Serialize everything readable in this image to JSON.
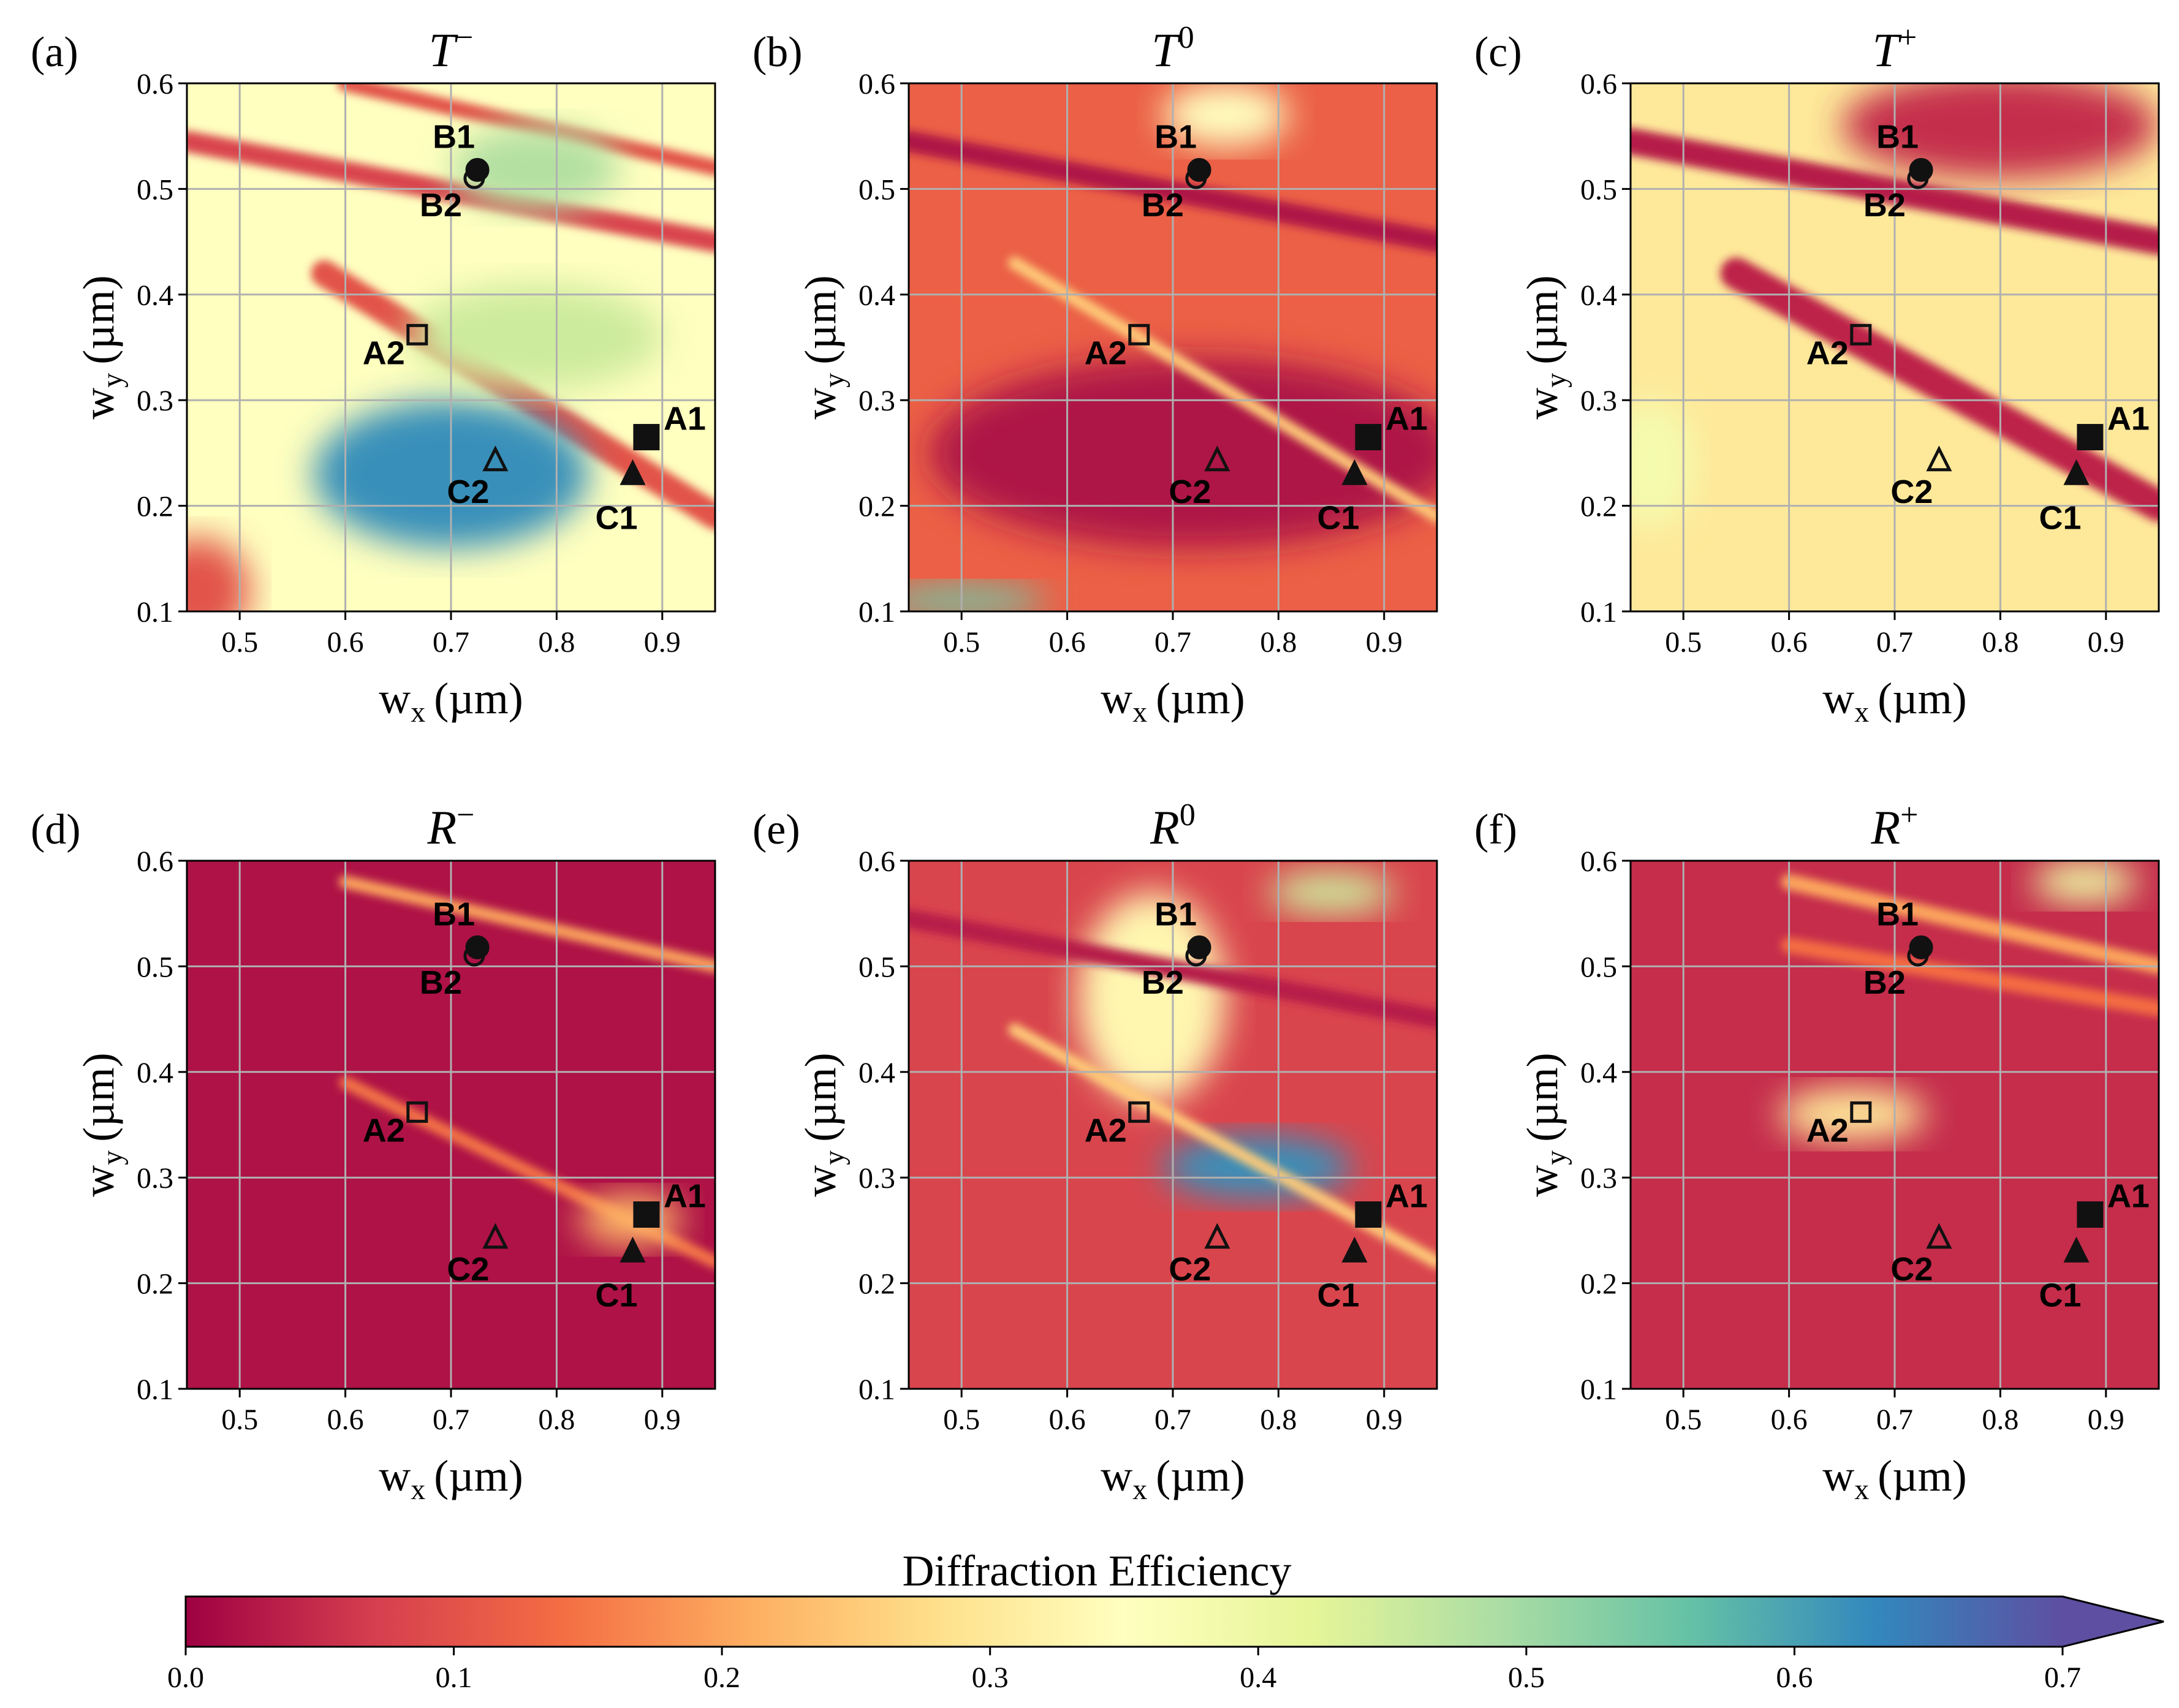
{
  "colors": {
    "colormap": [
      "#9e0142",
      "#d53e4f",
      "#f46d43",
      "#fdae61",
      "#fee08b",
      "#ffffbf",
      "#e6f598",
      "#abdda4",
      "#66c2a5",
      "#3288bd",
      "#5e4fa2"
    ],
    "grid": "#b0b0b0",
    "marker": "#111111"
  },
  "chart_data": [
    {
      "type": "heatmap",
      "panel": "(a)",
      "title_base": "T",
      "title_sup": "−",
      "xlabel_main": "w",
      "xlabel_sub": "x",
      "xlabel_unit": "(µm)",
      "ylabel_main": "w",
      "ylabel_sub": "y",
      "ylabel_unit": "(µm)",
      "xlim": [
        0.45,
        0.95
      ],
      "ylim": [
        0.1,
        0.6
      ],
      "xticks": [
        "0.5",
        "0.6",
        "0.7",
        "0.8",
        "0.9"
      ],
      "yticks": [
        "0.1",
        "0.2",
        "0.3",
        "0.4",
        "0.5",
        "0.6"
      ],
      "grid": true,
      "base_level": 0.35,
      "features": [
        {
          "kind": "band",
          "x0": 0.45,
          "y0": 0.545,
          "x1": 0.95,
          "y1": 0.45,
          "value": 0.08,
          "width": 0.02
        },
        {
          "kind": "band",
          "x0": 0.6,
          "y0": 0.6,
          "x1": 0.95,
          "y1": 0.52,
          "value": 0.1,
          "width": 0.015
        },
        {
          "kind": "band",
          "x0": 0.58,
          "y0": 0.42,
          "x1": 0.95,
          "y1": 0.19,
          "value": 0.1,
          "width": 0.025
        },
        {
          "kind": "blob",
          "cx": 0.7,
          "cy": 0.23,
          "rx": 0.13,
          "ry": 0.07,
          "value": 0.62
        },
        {
          "kind": "blob",
          "cx": 0.78,
          "cy": 0.52,
          "rx": 0.08,
          "ry": 0.04,
          "value": 0.48
        },
        {
          "kind": "blob",
          "cx": 0.78,
          "cy": 0.36,
          "rx": 0.12,
          "ry": 0.05,
          "value": 0.45
        },
        {
          "kind": "blob",
          "cx": 0.46,
          "cy": 0.12,
          "rx": 0.05,
          "ry": 0.05,
          "value": 0.1
        }
      ],
      "markers": [
        {
          "label": "A1",
          "x": 0.885,
          "y": 0.265,
          "shape": "square",
          "filled": true
        },
        {
          "label": "A2",
          "x": 0.668,
          "y": 0.362,
          "shape": "square",
          "filled": false
        },
        {
          "label": "B1",
          "x": 0.725,
          "y": 0.518,
          "shape": "circle",
          "filled": true
        },
        {
          "label": "B2",
          "x": 0.722,
          "y": 0.51,
          "shape": "circle",
          "filled": false
        },
        {
          "label": "C1",
          "x": 0.872,
          "y": 0.229,
          "shape": "triangle",
          "filled": true
        },
        {
          "label": "C2",
          "x": 0.742,
          "y": 0.242,
          "shape": "triangle",
          "filled": false
        }
      ]
    },
    {
      "type": "heatmap",
      "panel": "(b)",
      "title_base": "T",
      "title_sup": "0",
      "xlabel_main": "w",
      "xlabel_sub": "x",
      "xlabel_unit": "(µm)",
      "ylabel_main": "w",
      "ylabel_sub": "y",
      "ylabel_unit": "(µm)",
      "xlim": [
        0.45,
        0.95
      ],
      "ylim": [
        0.1,
        0.6
      ],
      "xticks": [
        "0.5",
        "0.6",
        "0.7",
        "0.8",
        "0.9"
      ],
      "yticks": [
        "0.1",
        "0.2",
        "0.3",
        "0.4",
        "0.5",
        "0.6"
      ],
      "grid": true,
      "base_level": 0.12,
      "features": [
        {
          "kind": "blob",
          "cx": 0.72,
          "cy": 0.25,
          "rx": 0.25,
          "ry": 0.09,
          "value": 0.02
        },
        {
          "kind": "band",
          "x0": 0.45,
          "y0": 0.545,
          "x1": 0.95,
          "y1": 0.45,
          "value": 0.02,
          "width": 0.02
        },
        {
          "kind": "band",
          "x0": 0.55,
          "y0": 0.43,
          "x1": 0.95,
          "y1": 0.19,
          "value": 0.25,
          "width": 0.012
        },
        {
          "kind": "blob",
          "cx": 0.75,
          "cy": 0.57,
          "rx": 0.06,
          "ry": 0.03,
          "value": 0.35
        },
        {
          "kind": "blob",
          "cx": 0.5,
          "cy": 0.11,
          "rx": 0.08,
          "ry": 0.015,
          "value": 0.55
        }
      ],
      "markers": [
        {
          "label": "A1",
          "x": 0.885,
          "y": 0.265,
          "shape": "square",
          "filled": true
        },
        {
          "label": "A2",
          "x": 0.668,
          "y": 0.362,
          "shape": "square",
          "filled": false
        },
        {
          "label": "B1",
          "x": 0.725,
          "y": 0.518,
          "shape": "circle",
          "filled": true
        },
        {
          "label": "B2",
          "x": 0.722,
          "y": 0.51,
          "shape": "circle",
          "filled": false
        },
        {
          "label": "C1",
          "x": 0.872,
          "y": 0.229,
          "shape": "triangle",
          "filled": true
        },
        {
          "label": "C2",
          "x": 0.742,
          "y": 0.242,
          "shape": "triangle",
          "filled": false
        }
      ]
    },
    {
      "type": "heatmap",
      "panel": "(c)",
      "title_base": "T",
      "title_sup": "+",
      "xlabel_main": "w",
      "xlabel_sub": "x",
      "xlabel_unit": "(µm)",
      "ylabel_main": "w",
      "ylabel_sub": "y",
      "ylabel_unit": "(µm)",
      "xlim": [
        0.45,
        0.95
      ],
      "ylim": [
        0.1,
        0.6
      ],
      "xticks": [
        "0.5",
        "0.6",
        "0.7",
        "0.8",
        "0.9"
      ],
      "yticks": [
        "0.1",
        "0.2",
        "0.3",
        "0.4",
        "0.5",
        "0.6"
      ],
      "grid": true,
      "base_level": 0.3,
      "features": [
        {
          "kind": "band",
          "x0": 0.45,
          "y0": 0.545,
          "x1": 0.95,
          "y1": 0.45,
          "value": 0.03,
          "width": 0.025
        },
        {
          "kind": "band",
          "x0": 0.55,
          "y0": 0.42,
          "x1": 0.95,
          "y1": 0.2,
          "value": 0.04,
          "width": 0.03
        },
        {
          "kind": "blob",
          "cx": 0.8,
          "cy": 0.56,
          "rx": 0.15,
          "ry": 0.05,
          "value": 0.05
        },
        {
          "kind": "blob",
          "cx": 0.47,
          "cy": 0.24,
          "rx": 0.04,
          "ry": 0.06,
          "value": 0.38
        }
      ],
      "markers": [
        {
          "label": "A1",
          "x": 0.885,
          "y": 0.265,
          "shape": "square",
          "filled": true
        },
        {
          "label": "A2",
          "x": 0.668,
          "y": 0.362,
          "shape": "square",
          "filled": false
        },
        {
          "label": "B1",
          "x": 0.725,
          "y": 0.518,
          "shape": "circle",
          "filled": true
        },
        {
          "label": "B2",
          "x": 0.722,
          "y": 0.51,
          "shape": "circle",
          "filled": false
        },
        {
          "label": "C1",
          "x": 0.872,
          "y": 0.229,
          "shape": "triangle",
          "filled": true
        },
        {
          "label": "C2",
          "x": 0.742,
          "y": 0.242,
          "shape": "triangle",
          "filled": false
        }
      ]
    },
    {
      "type": "heatmap",
      "panel": "(d)",
      "title_base": "R",
      "title_sup": "−",
      "xlabel_main": "w",
      "xlabel_sub": "x",
      "xlabel_unit": "(µm)",
      "ylabel_main": "w",
      "ylabel_sub": "y",
      "ylabel_unit": "(µm)",
      "xlim": [
        0.45,
        0.95
      ],
      "ylim": [
        0.1,
        0.6
      ],
      "xticks": [
        "0.5",
        "0.6",
        "0.7",
        "0.8",
        "0.9"
      ],
      "yticks": [
        "0.1",
        "0.2",
        "0.3",
        "0.4",
        "0.5",
        "0.6"
      ],
      "grid": true,
      "base_level": 0.02,
      "features": [
        {
          "kind": "band",
          "x0": 0.6,
          "y0": 0.58,
          "x1": 0.95,
          "y1": 0.5,
          "value": 0.2,
          "width": 0.012
        },
        {
          "kind": "band",
          "x0": 0.6,
          "y0": 0.39,
          "x1": 0.95,
          "y1": 0.22,
          "value": 0.15,
          "width": 0.012
        },
        {
          "kind": "blob",
          "cx": 0.87,
          "cy": 0.26,
          "rx": 0.05,
          "ry": 0.025,
          "value": 0.22
        }
      ],
      "markers": [
        {
          "label": "A1",
          "x": 0.885,
          "y": 0.265,
          "shape": "square",
          "filled": true
        },
        {
          "label": "A2",
          "x": 0.668,
          "y": 0.362,
          "shape": "square",
          "filled": false
        },
        {
          "label": "B1",
          "x": 0.725,
          "y": 0.518,
          "shape": "circle",
          "filled": true
        },
        {
          "label": "B2",
          "x": 0.722,
          "y": 0.51,
          "shape": "circle",
          "filled": false
        },
        {
          "label": "C1",
          "x": 0.872,
          "y": 0.229,
          "shape": "triangle",
          "filled": true
        },
        {
          "label": "C2",
          "x": 0.742,
          "y": 0.242,
          "shape": "triangle",
          "filled": false
        }
      ]
    },
    {
      "type": "heatmap",
      "panel": "(e)",
      "title_base": "R",
      "title_sup": "0",
      "xlabel_main": "w",
      "xlabel_sub": "x",
      "xlabel_unit": "(µm)",
      "ylabel_main": "w",
      "ylabel_sub": "y",
      "ylabel_unit": "(µm)",
      "xlim": [
        0.45,
        0.95
      ],
      "ylim": [
        0.1,
        0.6
      ],
      "xticks": [
        "0.5",
        "0.6",
        "0.7",
        "0.8",
        "0.9"
      ],
      "yticks": [
        "0.1",
        "0.2",
        "0.3",
        "0.4",
        "0.5",
        "0.6"
      ],
      "grid": true,
      "base_level": 0.08,
      "features": [
        {
          "kind": "blob",
          "cx": 0.68,
          "cy": 0.47,
          "rx": 0.07,
          "ry": 0.1,
          "value": 0.33
        },
        {
          "kind": "blob",
          "cx": 0.78,
          "cy": 0.31,
          "rx": 0.09,
          "ry": 0.03,
          "value": 0.62
        },
        {
          "kind": "band",
          "x0": 0.45,
          "y0": 0.545,
          "x1": 0.95,
          "y1": 0.45,
          "value": 0.03,
          "width": 0.018
        },
        {
          "kind": "band",
          "x0": 0.55,
          "y0": 0.44,
          "x1": 0.95,
          "y1": 0.22,
          "value": 0.25,
          "width": 0.012
        },
        {
          "kind": "blob",
          "cx": 0.85,
          "cy": 0.57,
          "rx": 0.06,
          "ry": 0.02,
          "value": 0.45
        }
      ],
      "markers": [
        {
          "label": "A1",
          "x": 0.885,
          "y": 0.265,
          "shape": "square",
          "filled": true
        },
        {
          "label": "A2",
          "x": 0.668,
          "y": 0.362,
          "shape": "square",
          "filled": false
        },
        {
          "label": "B1",
          "x": 0.725,
          "y": 0.518,
          "shape": "circle",
          "filled": true
        },
        {
          "label": "B2",
          "x": 0.722,
          "y": 0.51,
          "shape": "circle",
          "filled": false
        },
        {
          "label": "C1",
          "x": 0.872,
          "y": 0.229,
          "shape": "triangle",
          "filled": true
        },
        {
          "label": "C2",
          "x": 0.742,
          "y": 0.242,
          "shape": "triangle",
          "filled": false
        }
      ]
    },
    {
      "type": "heatmap",
      "panel": "(f)",
      "title_base": "R",
      "title_sup": "+",
      "xlabel_main": "w",
      "xlabel_sub": "x",
      "xlabel_unit": "(µm)",
      "ylabel_main": "w",
      "ylabel_sub": "y",
      "ylabel_unit": "(µm)",
      "xlim": [
        0.45,
        0.95
      ],
      "ylim": [
        0.1,
        0.6
      ],
      "xticks": [
        "0.5",
        "0.6",
        "0.7",
        "0.8",
        "0.9"
      ],
      "yticks": [
        "0.1",
        "0.2",
        "0.3",
        "0.4",
        "0.5",
        "0.6"
      ],
      "grid": true,
      "base_level": 0.05,
      "features": [
        {
          "kind": "band",
          "x0": 0.6,
          "y0": 0.58,
          "x1": 0.95,
          "y1": 0.5,
          "value": 0.2,
          "width": 0.015
        },
        {
          "kind": "blob",
          "cx": 0.66,
          "cy": 0.36,
          "rx": 0.07,
          "ry": 0.025,
          "value": 0.3
        },
        {
          "kind": "band",
          "x0": 0.6,
          "y0": 0.52,
          "x1": 0.95,
          "y1": 0.46,
          "value": 0.14,
          "width": 0.015
        },
        {
          "kind": "blob",
          "cx": 0.88,
          "cy": 0.58,
          "rx": 0.05,
          "ry": 0.02,
          "value": 0.4
        }
      ],
      "markers": [
        {
          "label": "A1",
          "x": 0.885,
          "y": 0.265,
          "shape": "square",
          "filled": true
        },
        {
          "label": "A2",
          "x": 0.668,
          "y": 0.362,
          "shape": "square",
          "filled": false
        },
        {
          "label": "B1",
          "x": 0.725,
          "y": 0.518,
          "shape": "circle",
          "filled": true
        },
        {
          "label": "B2",
          "x": 0.722,
          "y": 0.51,
          "shape": "circle",
          "filled": false
        },
        {
          "label": "C1",
          "x": 0.872,
          "y": 0.229,
          "shape": "triangle",
          "filled": true
        },
        {
          "label": "C2",
          "x": 0.742,
          "y": 0.242,
          "shape": "triangle",
          "filled": false
        }
      ]
    }
  ],
  "colorbar": {
    "title": "Diffraction Efficiency",
    "range": [
      0.0,
      0.7
    ],
    "ticks": [
      "0.0",
      "0.1",
      "0.2",
      "0.3",
      "0.4",
      "0.5",
      "0.6",
      "0.7"
    ],
    "extend": "max"
  }
}
